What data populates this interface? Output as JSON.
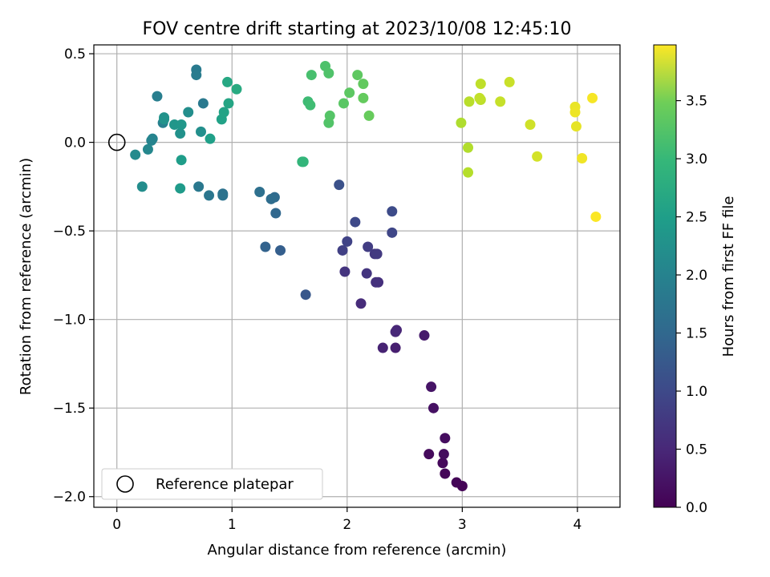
{
  "chart_data": {
    "type": "scatter",
    "title": "FOV centre drift starting at 2023/10/08 12:45:10",
    "xlabel": "Angular distance from reference (arcmin)",
    "ylabel": "Rotation from reference (arcmin)",
    "xlim": [
      -0.2,
      4.37
    ],
    "ylim": [
      -2.06,
      0.55
    ],
    "xticks": [
      0,
      1,
      2,
      3,
      4
    ],
    "xtick_labels": [
      "0",
      "1",
      "2",
      "3",
      "4"
    ],
    "yticks": [
      -2.0,
      -1.5,
      -1.0,
      -0.5,
      0.0,
      0.5
    ],
    "ytick_labels": [
      "−2.0",
      "−1.5",
      "−1.0",
      "−0.5",
      "0.0",
      "0.5"
    ],
    "grid": true,
    "colormap": "viridis",
    "colorbar": {
      "label": "Hours from first FF file",
      "range": [
        0.0,
        3.98
      ],
      "ticks": [
        0.0,
        0.5,
        1.0,
        1.5,
        2.0,
        2.5,
        3.0,
        3.5
      ],
      "tick_labels": [
        "0.0",
        "0.5",
        "1.0",
        "1.5",
        "2.0",
        "2.5",
        "3.0",
        "3.5"
      ]
    },
    "legend": {
      "position": "bottom-left",
      "entries": [
        {
          "label": "Reference platepar",
          "marker": "open-circle",
          "x": 0.0,
          "y": 0.0
        }
      ]
    },
    "series": [
      {
        "points": [
          {
            "x": 3.0,
            "y": -1.94,
            "t": 0.02
          },
          {
            "x": 2.95,
            "y": -1.92,
            "t": 0.04
          },
          {
            "x": 2.85,
            "y": -1.87,
            "t": 0.06
          },
          {
            "x": 2.83,
            "y": -1.81,
            "t": 0.08
          },
          {
            "x": 2.71,
            "y": -1.76,
            "t": 0.1
          },
          {
            "x": 2.84,
            "y": -1.76,
            "t": 0.12
          },
          {
            "x": 2.85,
            "y": -1.67,
            "t": 0.14
          },
          {
            "x": 2.75,
            "y": -1.5,
            "t": 0.18
          },
          {
            "x": 2.73,
            "y": -1.38,
            "t": 0.22
          },
          {
            "x": 2.67,
            "y": -1.09,
            "t": 0.3
          },
          {
            "x": 2.42,
            "y": -1.16,
            "t": 0.34
          },
          {
            "x": 2.31,
            "y": -1.16,
            "t": 0.38
          },
          {
            "x": 2.43,
            "y": -1.06,
            "t": 0.42
          },
          {
            "x": 2.42,
            "y": -1.07,
            "t": 0.44
          },
          {
            "x": 2.12,
            "y": -0.91,
            "t": 0.5
          },
          {
            "x": 2.27,
            "y": -0.79,
            "t": 0.54
          },
          {
            "x": 2.25,
            "y": -0.79,
            "t": 0.56
          },
          {
            "x": 1.98,
            "y": -0.73,
            "t": 0.6
          },
          {
            "x": 2.17,
            "y": -0.74,
            "t": 0.62
          },
          {
            "x": 2.24,
            "y": -0.63,
            "t": 0.66
          },
          {
            "x": 2.26,
            "y": -0.63,
            "t": 0.68
          },
          {
            "x": 2.18,
            "y": -0.59,
            "t": 0.72
          },
          {
            "x": 1.96,
            "y": -0.61,
            "t": 0.76
          },
          {
            "x": 2.0,
            "y": -0.56,
            "t": 0.8
          },
          {
            "x": 2.39,
            "y": -0.51,
            "t": 0.84
          },
          {
            "x": 2.07,
            "y": -0.45,
            "t": 0.88
          },
          {
            "x": 2.39,
            "y": -0.39,
            "t": 0.92
          },
          {
            "x": 1.93,
            "y": -0.24,
            "t": 1.0
          },
          {
            "x": 1.64,
            "y": -0.86,
            "t": 1.08
          },
          {
            "x": 1.42,
            "y": -0.61,
            "t": 1.2
          },
          {
            "x": 1.29,
            "y": -0.59,
            "t": 1.26
          },
          {
            "x": 1.38,
            "y": -0.4,
            "t": 1.32
          },
          {
            "x": 1.37,
            "y": -0.31,
            "t": 1.38
          },
          {
            "x": 1.34,
            "y": -0.32,
            "t": 1.42
          },
          {
            "x": 1.24,
            "y": -0.28,
            "t": 1.46
          },
          {
            "x": 0.92,
            "y": -0.29,
            "t": 1.5
          },
          {
            "x": 0.92,
            "y": -0.3,
            "t": 1.52
          },
          {
            "x": 0.8,
            "y": -0.3,
            "t": 1.56
          },
          {
            "x": 0.71,
            "y": -0.25,
            "t": 1.6
          },
          {
            "x": 0.75,
            "y": 0.22,
            "t": 1.62
          },
          {
            "x": 0.69,
            "y": 0.41,
            "t": 1.64
          },
          {
            "x": 0.69,
            "y": 0.38,
            "t": 1.66
          },
          {
            "x": 0.35,
            "y": 0.26,
            "t": 1.7
          },
          {
            "x": 0.4,
            "y": 0.11,
            "t": 1.74
          },
          {
            "x": 0.31,
            "y": 0.02,
            "t": 1.78
          },
          {
            "x": 0.3,
            "y": 0.01,
            "t": 1.8
          },
          {
            "x": 0.27,
            "y": -0.04,
            "t": 1.84
          },
          {
            "x": 0.16,
            "y": -0.07,
            "t": 1.9
          },
          {
            "x": 0.22,
            "y": -0.25,
            "t": 1.94
          },
          {
            "x": 0.62,
            "y": 0.17,
            "t": 1.96
          },
          {
            "x": 0.73,
            "y": 0.06,
            "t": 1.98
          },
          {
            "x": 0.55,
            "y": 0.05,
            "t": 2.0
          },
          {
            "x": 0.41,
            "y": 0.14,
            "t": 2.02
          },
          {
            "x": 0.41,
            "y": 0.13,
            "t": 2.04
          },
          {
            "x": 0.5,
            "y": 0.1,
            "t": 2.08
          },
          {
            "x": 0.56,
            "y": 0.1,
            "t": 2.1
          },
          {
            "x": 0.55,
            "y": -0.26,
            "t": 2.16
          },
          {
            "x": 0.56,
            "y": -0.1,
            "t": 2.2
          },
          {
            "x": 0.81,
            "y": 0.02,
            "t": 2.24
          },
          {
            "x": 0.91,
            "y": 0.13,
            "t": 2.28
          },
          {
            "x": 0.93,
            "y": 0.17,
            "t": 2.3
          },
          {
            "x": 0.97,
            "y": 0.22,
            "t": 2.34
          },
          {
            "x": 0.96,
            "y": 0.34,
            "t": 2.38
          },
          {
            "x": 1.04,
            "y": 0.3,
            "t": 2.42
          },
          {
            "x": 1.61,
            "y": -0.11,
            "t": 2.6
          },
          {
            "x": 1.62,
            "y": -0.11,
            "t": 2.62
          },
          {
            "x": 1.66,
            "y": 0.23,
            "t": 2.72
          },
          {
            "x": 1.68,
            "y": 0.21,
            "t": 2.74
          },
          {
            "x": 1.69,
            "y": 0.38,
            "t": 2.8
          },
          {
            "x": 1.81,
            "y": 0.43,
            "t": 2.84
          },
          {
            "x": 1.84,
            "y": 0.39,
            "t": 2.86
          },
          {
            "x": 1.84,
            "y": 0.11,
            "t": 2.88
          },
          {
            "x": 1.85,
            "y": 0.15,
            "t": 2.9
          },
          {
            "x": 1.97,
            "y": 0.22,
            "t": 2.94
          },
          {
            "x": 2.02,
            "y": 0.28,
            "t": 2.96
          },
          {
            "x": 2.09,
            "y": 0.38,
            "t": 2.98
          },
          {
            "x": 2.14,
            "y": 0.33,
            "t": 3.0
          },
          {
            "x": 2.14,
            "y": 0.25,
            "t": 3.02
          },
          {
            "x": 2.19,
            "y": 0.15,
            "t": 3.04
          },
          {
            "x": 2.99,
            "y": 0.11,
            "t": 3.5
          },
          {
            "x": 3.05,
            "y": -0.03,
            "t": 3.52
          },
          {
            "x": 3.05,
            "y": -0.17,
            "t": 3.54
          },
          {
            "x": 3.06,
            "y": 0.23,
            "t": 3.56
          },
          {
            "x": 3.16,
            "y": 0.24,
            "t": 3.58
          },
          {
            "x": 3.16,
            "y": 0.33,
            "t": 3.6
          },
          {
            "x": 3.15,
            "y": 0.25,
            "t": 3.62
          },
          {
            "x": 3.33,
            "y": 0.23,
            "t": 3.64
          },
          {
            "x": 3.41,
            "y": 0.34,
            "t": 3.66
          },
          {
            "x": 3.59,
            "y": 0.1,
            "t": 3.7
          },
          {
            "x": 3.65,
            "y": -0.08,
            "t": 3.72
          },
          {
            "x": 3.99,
            "y": 0.09,
            "t": 3.84
          },
          {
            "x": 3.98,
            "y": 0.2,
            "t": 3.86
          },
          {
            "x": 3.98,
            "y": 0.17,
            "t": 3.88
          },
          {
            "x": 4.04,
            "y": -0.09,
            "t": 3.9
          },
          {
            "x": 4.13,
            "y": 0.25,
            "t": 3.94
          },
          {
            "x": 4.16,
            "y": -0.42,
            "t": 3.97
          }
        ]
      }
    ]
  }
}
